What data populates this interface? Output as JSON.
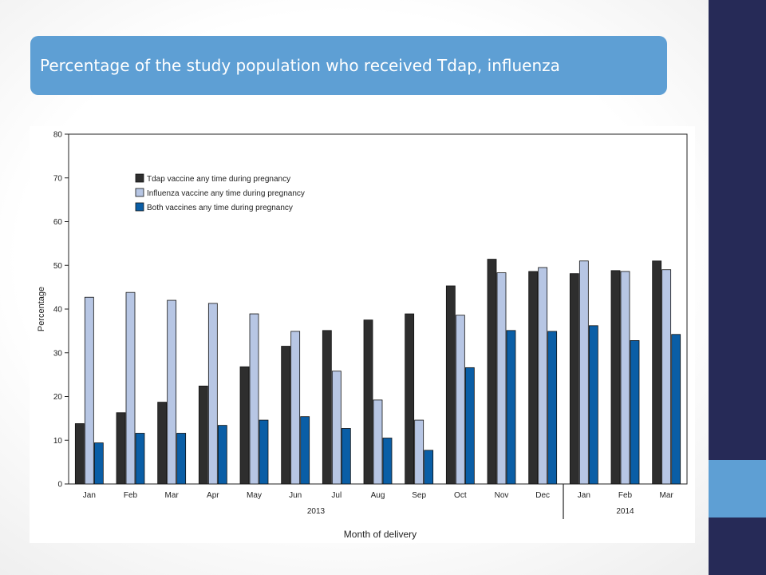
{
  "slide": {
    "title": "Percentage of the study population who received Tdap, influenza"
  },
  "colors": {
    "background": "#ffffff",
    "title_bar": "#5e9fd4",
    "side_bar": "#262a57",
    "side_accent": "#5e9fd4",
    "tdap": "#2e2e2e",
    "influenza": "#b7c6e4",
    "both": "#0a5ea6"
  },
  "chart_data": {
    "type": "bar",
    "title": "",
    "xlabel": "Month of delivery",
    "ylabel": "Percentage",
    "ylim": [
      0,
      80
    ],
    "yticks": [
      0,
      10,
      20,
      30,
      40,
      50,
      60,
      70,
      80
    ],
    "grid": false,
    "legend_position": "top-left",
    "categories": [
      "Jan",
      "Feb",
      "Mar",
      "Apr",
      "May",
      "Jun",
      "Jul",
      "Aug",
      "Sep",
      "Oct",
      "Nov",
      "Dec",
      "Jan",
      "Feb",
      "Mar"
    ],
    "year_groups": [
      {
        "label": "2013",
        "start": 0,
        "end": 11
      },
      {
        "label": "2014",
        "start": 12,
        "end": 14
      }
    ],
    "series": [
      {
        "name": "Tdap vaccine any time during pregnancy",
        "color": "#2e2e2e",
        "values": [
          13.8,
          16.3,
          18.7,
          22.4,
          26.8,
          31.5,
          35.1,
          37.5,
          38.9,
          45.3,
          51.4,
          48.6,
          48.1,
          48.8,
          51.0
        ]
      },
      {
        "name": "Influenza vaccine any time during pregnancy",
        "color": "#b7c6e4",
        "values": [
          42.7,
          43.8,
          42.0,
          41.3,
          38.9,
          34.9,
          25.8,
          19.2,
          14.6,
          38.6,
          48.3,
          49.5,
          51.0,
          48.6,
          49.0
        ]
      },
      {
        "name": "Both vaccines any time during pregnancy",
        "color": "#0a5ea6",
        "values": [
          9.4,
          11.6,
          11.6,
          13.4,
          14.6,
          15.4,
          12.7,
          10.5,
          7.7,
          26.6,
          35.1,
          34.9,
          36.2,
          32.8,
          34.2
        ]
      }
    ]
  }
}
